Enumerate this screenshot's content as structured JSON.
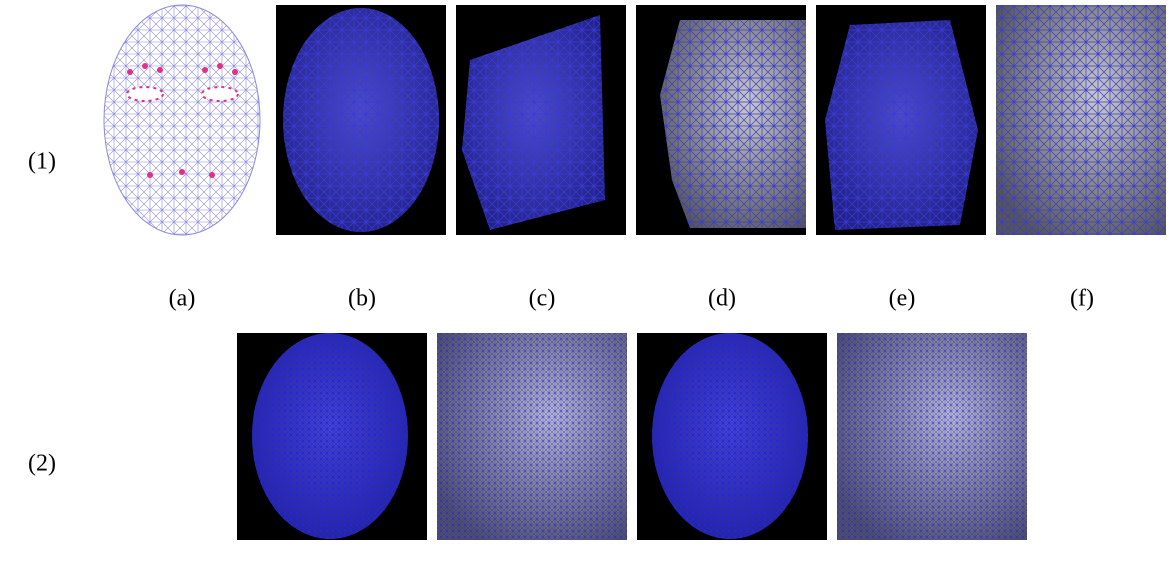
{
  "row_labels": [
    "(1)",
    "(2)"
  ],
  "column_labels": [
    "(a)",
    "(b)",
    "(c)",
    "(d)",
    "(e)",
    "(f)"
  ]
}
